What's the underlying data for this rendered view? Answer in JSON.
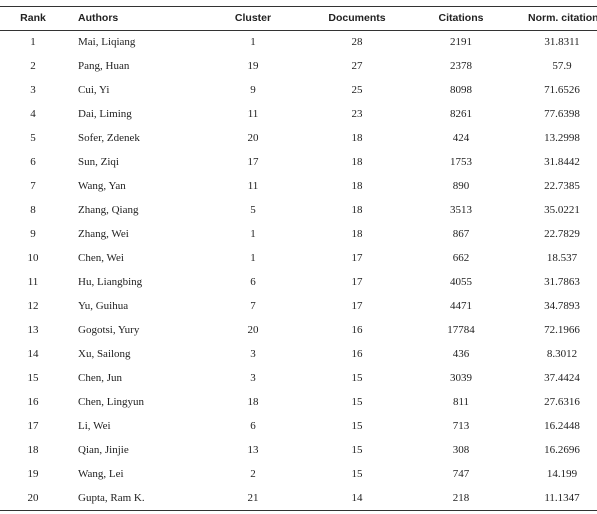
{
  "table": {
    "header": [
      "Rank",
      "Authors",
      "Cluster",
      "Documents",
      "Citations",
      "Norm. citation"
    ],
    "rows": [
      [
        "1",
        "Mai, Liqiang",
        "1",
        "28",
        "2191",
        "31.8311"
      ],
      [
        "2",
        "Pang, Huan",
        "19",
        "27",
        "2378",
        "57.9"
      ],
      [
        "3",
        "Cui, Yi",
        "9",
        "25",
        "8098",
        "71.6526"
      ],
      [
        "4",
        "Dai, Liming",
        "11",
        "23",
        "8261",
        "77.6398"
      ],
      [
        "5",
        "Sofer, Zdenek",
        "20",
        "18",
        "424",
        "13.2998"
      ],
      [
        "6",
        "Sun, Ziqi",
        "17",
        "18",
        "1753",
        "31.8442"
      ],
      [
        "7",
        "Wang, Yan",
        "11",
        "18",
        "890",
        "22.7385"
      ],
      [
        "8",
        "Zhang, Qiang",
        "5",
        "18",
        "3513",
        "35.0221"
      ],
      [
        "9",
        "Zhang, Wei",
        "1",
        "18",
        "867",
        "22.7829"
      ],
      [
        "10",
        "Chen, Wei",
        "1",
        "17",
        "662",
        "18.537"
      ],
      [
        "11",
        "Hu, Liangbing",
        "6",
        "17",
        "4055",
        "31.7863"
      ],
      [
        "12",
        "Yu, Guihua",
        "7",
        "17",
        "4471",
        "34.7893"
      ],
      [
        "13",
        "Gogotsi, Yury",
        "20",
        "16",
        "17784",
        "72.1966"
      ],
      [
        "14",
        "Xu, Sailong",
        "3",
        "16",
        "436",
        "8.3012"
      ],
      [
        "15",
        "Chen, Jun",
        "3",
        "15",
        "3039",
        "37.4424"
      ],
      [
        "16",
        "Chen, Lingyun",
        "18",
        "15",
        "811",
        "27.6316"
      ],
      [
        "17",
        "Li, Wei",
        "6",
        "15",
        "713",
        "16.2448"
      ],
      [
        "18",
        "Qian, Jinjie",
        "13",
        "15",
        "308",
        "16.2696"
      ],
      [
        "19",
        "Wang, Lei",
        "2",
        "15",
        "747",
        "14.199"
      ],
      [
        "20",
        "Gupta, Ram K.",
        "21",
        "14",
        "218",
        "11.1347"
      ]
    ]
  }
}
